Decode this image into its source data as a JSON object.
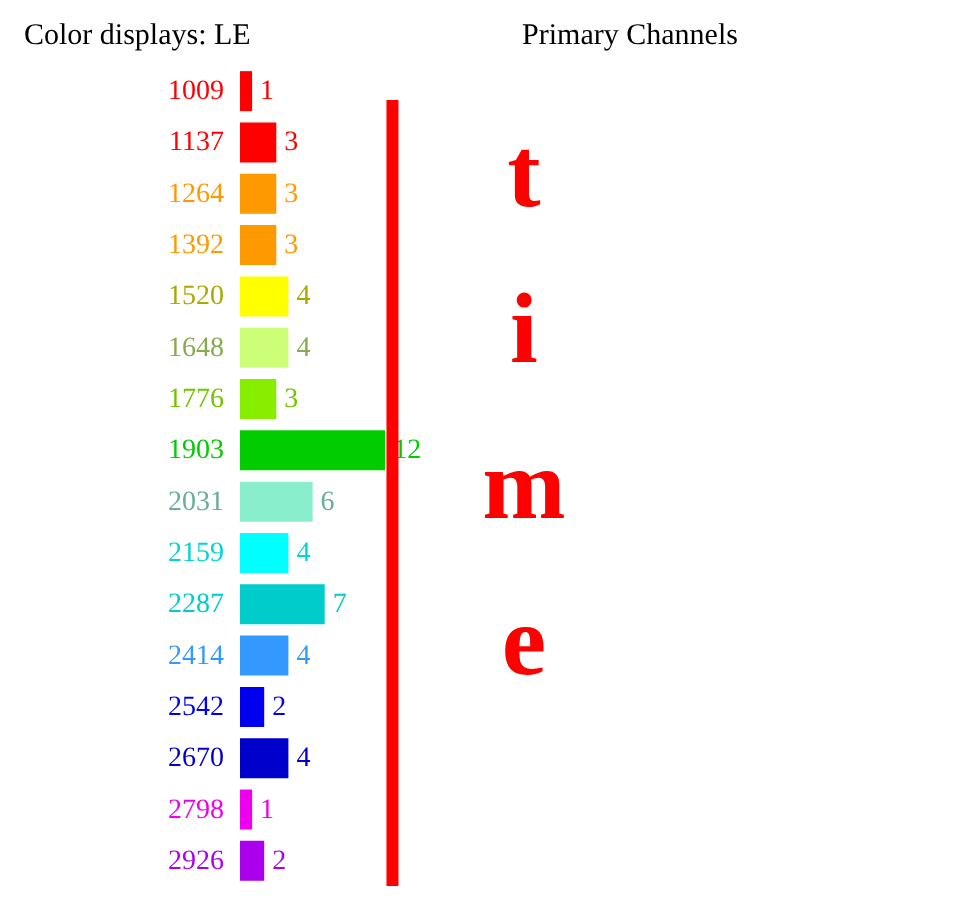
{
  "chart_data": {
    "type": "bar",
    "orientation": "horizontal",
    "title": "Color displays: LE",
    "annotations": [
      "Primary Channels"
    ],
    "categories": [
      "1009",
      "1137",
      "1264",
      "1392",
      "1520",
      "1648",
      "1776",
      "1903",
      "2031",
      "2159",
      "2287",
      "2414",
      "2542",
      "2670",
      "2798",
      "2926"
    ],
    "values": [
      1,
      3,
      3,
      3,
      4,
      4,
      3,
      12,
      6,
      4,
      7,
      4,
      2,
      4,
      1,
      2
    ],
    "colors": [
      "#ff0000",
      "#ff0000",
      "#ff9900",
      "#ff9900",
      "#ffff00",
      "#ccff77",
      "#88ee00",
      "#00cc00",
      "#88eecc",
      "#00ffff",
      "#00cccc",
      "#3399ff",
      "#0000ee",
      "#0000cc",
      "#ee00ee",
      "#aa00ee"
    ],
    "data_labels": true,
    "ref_lines": [
      {
        "axis": "x",
        "value": 12.6,
        "label": "time",
        "color": "#ff0000"
      }
    ]
  }
}
